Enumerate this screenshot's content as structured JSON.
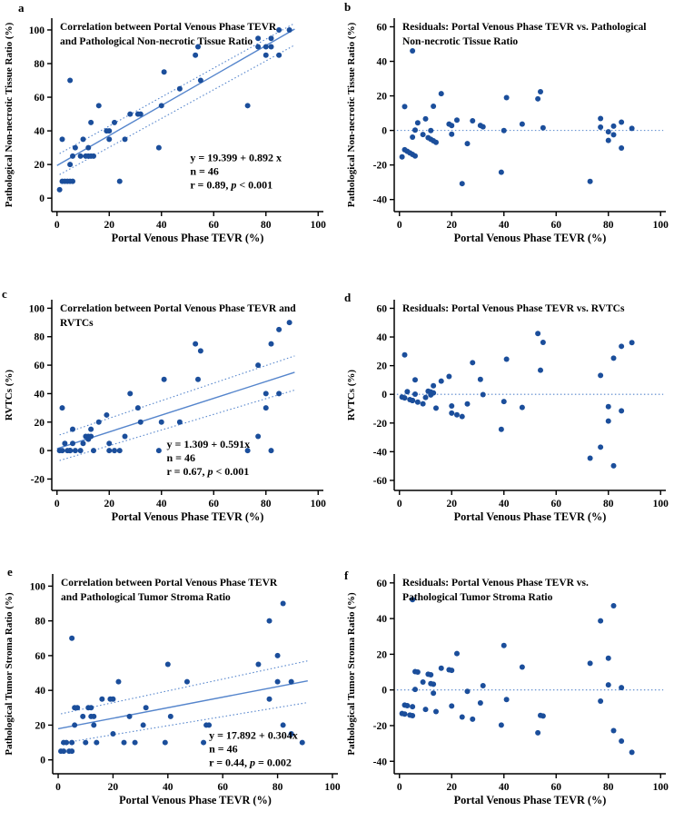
{
  "figure": {
    "background": "#ffffff"
  },
  "style": {
    "dot_color": "#1b4e9b",
    "fit_line_color": "#5585cc",
    "axis_color": "#000000",
    "text_color": "#000000"
  },
  "chart_data": [
    {
      "panel_label": "a",
      "type": "scatter",
      "title_lines": [
        "Correlation between Portal Venous Phase TEVR",
        "and Pathological Non-necrotic Tissue Ratio"
      ],
      "xlabel": "Portal Venous Phase TEVR (%)",
      "ylabel": "Pathological Non-necrotic Tissue Ratio (%)",
      "xlim": [
        -2,
        102
      ],
      "ylim": [
        -8,
        107
      ],
      "xticks": [
        0,
        20,
        40,
        60,
        80,
        100
      ],
      "yticks": [
        0,
        20,
        40,
        60,
        80,
        100
      ],
      "grid": false,
      "points": [
        [
          1,
          5
        ],
        [
          2,
          10
        ],
        [
          2,
          35
        ],
        [
          3,
          10
        ],
        [
          4,
          10
        ],
        [
          5,
          10
        ],
        [
          5,
          20
        ],
        [
          5,
          70
        ],
        [
          6,
          10
        ],
        [
          6,
          25
        ],
        [
          7,
          30
        ],
        [
          9,
          25
        ],
        [
          10,
          35
        ],
        [
          11,
          25
        ],
        [
          12,
          30
        ],
        [
          12,
          25
        ],
        [
          13,
          45
        ],
        [
          13,
          25
        ],
        [
          14,
          25
        ],
        [
          16,
          55
        ],
        [
          19,
          40
        ],
        [
          20,
          40
        ],
        [
          20,
          35
        ],
        [
          22,
          45
        ],
        [
          24,
          10
        ],
        [
          26,
          35
        ],
        [
          28,
          50
        ],
        [
          31,
          50
        ],
        [
          32,
          50
        ],
        [
          39,
          30
        ],
        [
          40,
          55
        ],
        [
          41,
          75
        ],
        [
          47,
          65
        ],
        [
          53,
          85
        ],
        [
          54,
          90
        ],
        [
          55,
          70
        ],
        [
          73,
          55
        ],
        [
          77,
          95
        ],
        [
          77,
          90
        ],
        [
          80,
          90
        ],
        [
          80,
          85
        ],
        [
          82,
          95
        ],
        [
          82,
          90
        ],
        [
          85,
          100
        ],
        [
          85,
          85
        ],
        [
          89,
          100
        ]
      ],
      "fit": {
        "equation": "y = 19.399 + 0.892 x",
        "n_label": "n = 46",
        "r_pre": "r = 0.89, ",
        "p_italic": "p",
        "p_post": " < 0.001",
        "line": [
          [
            0,
            19.4
          ],
          [
            91,
            100.5
          ]
        ],
        "ci_upper": [
          [
            1,
            26.5
          ],
          [
            91,
            104
          ]
        ],
        "ci_lower": [
          [
            1,
            14
          ],
          [
            91,
            91
          ]
        ],
        "annot_xy": [
          51,
          22
        ]
      },
      "zero_line": false
    },
    {
      "panel_label": "b",
      "type": "scatter",
      "title_lines": [
        "Residuals: Portal Venous Phase TEVR vs. Pathological",
        "Non-necrotic Tissue Ratio"
      ],
      "xlabel": "Portal Venous Phase TEVR (%)",
      "ylabel": "Pathological Non-necrotic Tissue Ratio (%)",
      "xlim": [
        -2,
        102
      ],
      "ylim": [
        -47,
        65
      ],
      "xticks": [
        0,
        20,
        40,
        60,
        80,
        100
      ],
      "yticks": [
        -40,
        -20,
        0,
        20,
        40,
        60
      ],
      "grid": false,
      "points": [
        [
          1,
          -15.3
        ],
        [
          2,
          -11.2
        ],
        [
          2,
          13.8
        ],
        [
          3,
          -12.1
        ],
        [
          4,
          -13
        ],
        [
          5,
          -13.9
        ],
        [
          5,
          -3.9
        ],
        [
          5,
          46.1
        ],
        [
          6,
          -14.8
        ],
        [
          6,
          0.2
        ],
        [
          7,
          4.4
        ],
        [
          9,
          -2.4
        ],
        [
          10,
          6.7
        ],
        [
          11,
          -4.2
        ],
        [
          12,
          -0.1
        ],
        [
          12,
          -5.1
        ],
        [
          13,
          14
        ],
        [
          13,
          -6
        ],
        [
          14,
          -6.9
        ],
        [
          16,
          21.3
        ],
        [
          19,
          3.7
        ],
        [
          20,
          2.8
        ],
        [
          20,
          -2.2
        ],
        [
          22,
          6
        ],
        [
          24,
          -30.8
        ],
        [
          26,
          -7.6
        ],
        [
          28,
          5.6
        ],
        [
          31,
          2.9
        ],
        [
          32,
          2.1
        ],
        [
          39,
          -24.2
        ],
        [
          40,
          -0.1
        ],
        [
          41,
          19
        ],
        [
          47,
          3.7
        ],
        [
          53,
          18.3
        ],
        [
          54,
          22.4
        ],
        [
          55,
          1.5
        ],
        [
          73,
          -29.5
        ],
        [
          77,
          6.9
        ],
        [
          77,
          1.9
        ],
        [
          80,
          -0.8
        ],
        [
          80,
          -5.8
        ],
        [
          82,
          2.5
        ],
        [
          82,
          -2.5
        ],
        [
          85,
          4.8
        ],
        [
          85,
          -10.2
        ],
        [
          89,
          1.2
        ]
      ],
      "fit": null,
      "zero_line": true
    },
    {
      "panel_label": "c",
      "type": "scatter",
      "title_lines": [
        "Correlation between Portal Venous Phase TEVR and",
        "RVTCs"
      ],
      "xlabel": "Portal Venous Phase TEVR (%)",
      "ylabel": "RVTCs (%)",
      "xlim": [
        -2,
        102
      ],
      "ylim": [
        -28,
        106
      ],
      "xticks": [
        0,
        20,
        40,
        60,
        80,
        100
      ],
      "yticks": [
        -20,
        0,
        20,
        40,
        60,
        80,
        100
      ],
      "grid": false,
      "points": [
        [
          1,
          0
        ],
        [
          2,
          0
        ],
        [
          2,
          30
        ],
        [
          3,
          5
        ],
        [
          4,
          0
        ],
        [
          5,
          0
        ],
        [
          5,
          0
        ],
        [
          5,
          0
        ],
        [
          6,
          15
        ],
        [
          6,
          5
        ],
        [
          7,
          0
        ],
        [
          9,
          0
        ],
        [
          10,
          5
        ],
        [
          11,
          10
        ],
        [
          12,
          10
        ],
        [
          12,
          8
        ],
        [
          13,
          15
        ],
        [
          13,
          10
        ],
        [
          14,
          0
        ],
        [
          16,
          20
        ],
        [
          19,
          25
        ],
        [
          20,
          5
        ],
        [
          20,
          0
        ],
        [
          22,
          0
        ],
        [
          24,
          0
        ],
        [
          26,
          10
        ],
        [
          28,
          40
        ],
        [
          31,
          30
        ],
        [
          32,
          20
        ],
        [
          39,
          0
        ],
        [
          40,
          20
        ],
        [
          41,
          50
        ],
        [
          47,
          20
        ],
        [
          53,
          75
        ],
        [
          54,
          50
        ],
        [
          55,
          70
        ],
        [
          73,
          0
        ],
        [
          77,
          60
        ],
        [
          77,
          10
        ],
        [
          80,
          40
        ],
        [
          80,
          30
        ],
        [
          82,
          75
        ],
        [
          82,
          0
        ],
        [
          85,
          85
        ],
        [
          85,
          40
        ],
        [
          89,
          90
        ]
      ],
      "fit": {
        "equation": "y = 1.309 + 0.591x",
        "n_label": "n = 46",
        "r_pre": "r = 0.67, ",
        "p_italic": "p",
        "p_post": " < 0.001",
        "line": [
          [
            0,
            1.3
          ],
          [
            91,
            55
          ]
        ],
        "ci_upper": [
          [
            1,
            11
          ],
          [
            91,
            66.5
          ]
        ],
        "ci_lower": [
          [
            1,
            -7
          ],
          [
            91,
            42.5
          ]
        ],
        "annot_xy": [
          42,
          2
        ]
      },
      "zero_line": false
    },
    {
      "panel_label": "d",
      "type": "scatter",
      "title_lines": [
        "Residuals: Portal Venous Phase TEVR vs. RVTCs"
      ],
      "xlabel": "Portal Venous Phase TEVR (%)",
      "ylabel": "RVTCs (%)",
      "xlim": [
        -2,
        102
      ],
      "ylim": [
        -67,
        66
      ],
      "xticks": [
        0,
        20,
        40,
        60,
        80,
        100
      ],
      "yticks": [
        -60,
        -40,
        -20,
        0,
        20,
        40,
        60
      ],
      "grid": false,
      "points": [
        [
          1,
          -1.9
        ],
        [
          2,
          -2.5
        ],
        [
          2,
          27.5
        ],
        [
          3,
          1.9
        ],
        [
          4,
          -3.7
        ],
        [
          5,
          -4.3
        ],
        [
          5,
          -4.3
        ],
        [
          5,
          -4.3
        ],
        [
          6,
          10.1
        ],
        [
          6,
          0.1
        ],
        [
          7,
          -5.4
        ],
        [
          9,
          -6.6
        ],
        [
          10,
          -2.2
        ],
        [
          11,
          2.2
        ],
        [
          12,
          1.6
        ],
        [
          12,
          -0.4
        ],
        [
          13,
          6
        ],
        [
          13,
          1
        ],
        [
          14,
          -9.6
        ],
        [
          16,
          9.2
        ],
        [
          19,
          12.5
        ],
        [
          20,
          -8.1
        ],
        [
          20,
          -13.1
        ],
        [
          22,
          -14.3
        ],
        [
          24,
          -15.5
        ],
        [
          26,
          -6.7
        ],
        [
          28,
          22.1
        ],
        [
          31,
          10.4
        ],
        [
          32,
          -0.2
        ],
        [
          39,
          -24.4
        ],
        [
          40,
          -5
        ],
        [
          41,
          24.5
        ],
        [
          47,
          -9.1
        ],
        [
          53,
          42.4
        ],
        [
          54,
          16.8
        ],
        [
          55,
          36.2
        ],
        [
          73,
          -44.5
        ],
        [
          77,
          13.2
        ],
        [
          77,
          -36.8
        ],
        [
          80,
          -8.6
        ],
        [
          80,
          -18.6
        ],
        [
          82,
          25.2
        ],
        [
          82,
          -49.8
        ],
        [
          85,
          33.5
        ],
        [
          85,
          -11.5
        ],
        [
          89,
          36.1
        ]
      ],
      "fit": null,
      "zero_line": true
    },
    {
      "panel_label": "e",
      "type": "scatter",
      "title_lines": [
        "Correlation between Portal Venous Phase TEVR",
        "and Pathological Tumor Stroma Ratio"
      ],
      "xlabel": "Portal Venous Phase TEVR (%)",
      "ylabel": "Pathological Tumor Stroma Ratio (%)",
      "xlim": [
        -2,
        102
      ],
      "ylim": [
        -8,
        107
      ],
      "xticks": [
        0,
        20,
        40,
        60,
        80,
        100
      ],
      "yticks": [
        0,
        20,
        40,
        60,
        80,
        100
      ],
      "grid": false,
      "points": [
        [
          1,
          5
        ],
        [
          2,
          10
        ],
        [
          2,
          5
        ],
        [
          3,
          10
        ],
        [
          4,
          5
        ],
        [
          5,
          70
        ],
        [
          5,
          10
        ],
        [
          5,
          5
        ],
        [
          6,
          30
        ],
        [
          6,
          20
        ],
        [
          7,
          30
        ],
        [
          9,
          25
        ],
        [
          10,
          10
        ],
        [
          11,
          30
        ],
        [
          12,
          30
        ],
        [
          12,
          25
        ],
        [
          13,
          20
        ],
        [
          13,
          25
        ],
        [
          14,
          10
        ],
        [
          16,
          35
        ],
        [
          19,
          35
        ],
        [
          20,
          35
        ],
        [
          20,
          15
        ],
        [
          22,
          45
        ],
        [
          24,
          10
        ],
        [
          26,
          25
        ],
        [
          28,
          10
        ],
        [
          31,
          20
        ],
        [
          32,
          30
        ],
        [
          39,
          10
        ],
        [
          40,
          55
        ],
        [
          41,
          25
        ],
        [
          47,
          45
        ],
        [
          53,
          10
        ],
        [
          54,
          20
        ],
        [
          55,
          20
        ],
        [
          73,
          55
        ],
        [
          77,
          80
        ],
        [
          77,
          35
        ],
        [
          80,
          60
        ],
        [
          80,
          45
        ],
        [
          82,
          90
        ],
        [
          82,
          20
        ],
        [
          85,
          45
        ],
        [
          85,
          15
        ],
        [
          89,
          10
        ]
      ],
      "fit": {
        "equation": "y = 17.892 + 0.304x",
        "n_label": "n = 46",
        "r_pre": "r = 0.44, ",
        "p_italic": "p",
        "p_post": " = 0.002",
        "line": [
          [
            0,
            17.9
          ],
          [
            91,
            45.5
          ]
        ],
        "ci_upper": [
          [
            1,
            26.5
          ],
          [
            91,
            57
          ]
        ],
        "ci_lower": [
          [
            1,
            9.5
          ],
          [
            91,
            33
          ]
        ],
        "annot_xy": [
          55,
          12
        ]
      },
      "zero_line": false
    },
    {
      "panel_label": "f",
      "type": "scatter",
      "title_lines": [
        "Residuals: Portal Venous Phase TEVR vs.",
        "Pathological Tumor Stroma Ratio"
      ],
      "xlabel": "Portal Venous Phase TEVR (%)",
      "ylabel": "Pathological Tumor Stroma Ratio (%)",
      "xlim": [
        -2,
        102
      ],
      "ylim": [
        -47,
        65
      ],
      "xticks": [
        0,
        20,
        40,
        60,
        80,
        100
      ],
      "yticks": [
        -40,
        -20,
        0,
        20,
        40,
        60
      ],
      "grid": false,
      "points": [
        [
          1,
          -13.2
        ],
        [
          2,
          -8.5
        ],
        [
          2,
          -13.5
        ],
        [
          3,
          -8.8
        ],
        [
          4,
          -14.1
        ],
        [
          5,
          50.6
        ],
        [
          5,
          -9.4
        ],
        [
          5,
          -14.4
        ],
        [
          6,
          10.3
        ],
        [
          6,
          0.3
        ],
        [
          7,
          10
        ],
        [
          9,
          4.4
        ],
        [
          10,
          -10.9
        ],
        [
          11,
          8.8
        ],
        [
          12,
          8.5
        ],
        [
          12,
          3.5
        ],
        [
          13,
          -1.8
        ],
        [
          13,
          3.2
        ],
        [
          14,
          -12.1
        ],
        [
          16,
          12.2
        ],
        [
          19,
          11.3
        ],
        [
          20,
          11
        ],
        [
          20,
          -9
        ],
        [
          22,
          20.4
        ],
        [
          24,
          -15.2
        ],
        [
          26,
          -0.8
        ],
        [
          28,
          -16.4
        ],
        [
          31,
          -7.3
        ],
        [
          32,
          2.4
        ],
        [
          39,
          -19.7
        ],
        [
          40,
          24.9
        ],
        [
          41,
          -5.4
        ],
        [
          47,
          12.8
        ],
        [
          53,
          -24
        ],
        [
          54,
          -14.3
        ],
        [
          55,
          -14.6
        ],
        [
          73,
          14.9
        ],
        [
          77,
          38.7
        ],
        [
          77,
          -6.3
        ],
        [
          80,
          17.8
        ],
        [
          80,
          2.8
        ],
        [
          82,
          47.2
        ],
        [
          82,
          -22.8
        ],
        [
          85,
          1.3
        ],
        [
          85,
          -28.7
        ],
        [
          89,
          -35
        ]
      ],
      "fit": null,
      "zero_line": true
    }
  ]
}
